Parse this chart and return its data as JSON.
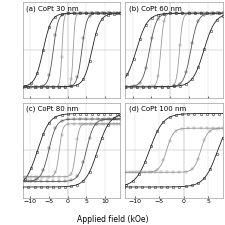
{
  "panels": [
    {
      "label": "(a) CoPt 30 nm",
      "xlim": [
        -12,
        14
      ],
      "xticks": [
        -10,
        -5,
        0,
        5,
        10
      ],
      "loops": [
        {
          "hc": 1.5,
          "ms": 1.0,
          "steep": 3.0,
          "color": "#999999",
          "marker": "s"
        },
        {
          "hc": 3.8,
          "ms": 1.0,
          "steep": 3.0,
          "color": "#555555",
          "marker": "s"
        },
        {
          "hc": 6.5,
          "ms": 1.0,
          "steep": 3.0,
          "color": "#222222",
          "marker": "o"
        }
      ]
    },
    {
      "label": "(b) CoPt 60 nm",
      "xlim": [
        -12,
        14
      ],
      "xticks": [
        -10,
        -5,
        0,
        5,
        10
      ],
      "loops": [
        {
          "hc": 2.5,
          "ms": 1.0,
          "steep": 3.0,
          "color": "#999999",
          "marker": "s"
        },
        {
          "hc": 5.5,
          "ms": 1.0,
          "steep": 3.0,
          "color": "#555555",
          "marker": "s"
        },
        {
          "hc": 9.0,
          "ms": 1.0,
          "steep": 3.0,
          "color": "#222222",
          "marker": "o"
        }
      ]
    },
    {
      "label": "(c) CoPt 80 nm",
      "xlim": [
        -12,
        14
      ],
      "xticks": [
        -10,
        -5,
        0,
        5,
        10
      ],
      "loops": [
        {
          "hc": 2.2,
          "ms": 0.72,
          "steep": 2.5,
          "color": "#999999",
          "marker": "s"
        },
        {
          "hc": 5.0,
          "ms": 0.85,
          "steep": 2.5,
          "color": "#555555",
          "marker": "s"
        },
        {
          "hc": 8.0,
          "ms": 1.0,
          "steep": 2.5,
          "color": "#222222",
          "marker": "o"
        }
      ]
    },
    {
      "label": "(d) CoPt 100 nm",
      "xlim": [
        -12,
        8
      ],
      "xticks": [
        -10,
        -5,
        0,
        5
      ],
      "loops": [
        {
          "hc": 3.5,
          "ms": 0.6,
          "steep": 2.5,
          "color": "#999999",
          "marker": "s"
        },
        {
          "hc": 7.0,
          "ms": 1.0,
          "steep": 2.5,
          "color": "#222222",
          "marker": "o"
        }
      ]
    }
  ],
  "xlabel": "Applied field (kOe)",
  "tick_fontsize": 4.5,
  "label_fontsize": 5.5,
  "panel_label_fontsize": 5.0,
  "n_points": 200,
  "marker_step": 12,
  "marker_size": 1.8,
  "linewidth": 0.6,
  "marker_edge_width": 0.35
}
